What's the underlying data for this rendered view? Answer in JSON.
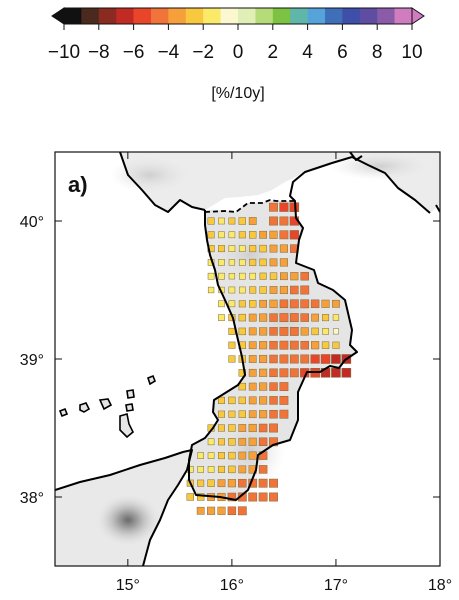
{
  "colorbar": {
    "colors": [
      "#111111",
      "#4a2a1e",
      "#8b2a20",
      "#c22a24",
      "#e8452a",
      "#f0733a",
      "#f6a03c",
      "#f8c93e",
      "#fbe96a",
      "#fbf7cf",
      "#e1efb6",
      "#b6dc7a",
      "#7dc242",
      "#5fb7a9",
      "#55a3d8",
      "#3f6fb9",
      "#3d4fa8",
      "#5d4ea2",
      "#8a5ba8",
      "#d07cc0"
    ],
    "tick_labels": [
      "−10",
      "−8",
      "−6",
      "−4",
      "−2",
      "0",
      "2",
      "4",
      "6",
      "8",
      "10"
    ],
    "unit_label": "[%/10y]"
  },
  "map": {
    "panel_label": "a)",
    "lon_range": [
      14.3,
      18.0
    ],
    "lat_range": [
      37.5,
      40.5
    ],
    "lon_ticks": [
      {
        "value": 15,
        "label": "15°"
      },
      {
        "value": 16,
        "label": "16°"
      },
      {
        "value": 17,
        "label": "17°"
      },
      {
        "value": 18,
        "label": "18°"
      }
    ],
    "lat_ticks": [
      {
        "value": 38,
        "label": "38°"
      },
      {
        "value": 39,
        "label": "39°"
      },
      {
        "value": 40,
        "label": "40°"
      }
    ],
    "trend_grid": {
      "spacing_deg": 0.1,
      "rows": [
        {
          "lat": 40.1,
          "lon_start": 16.4,
          "values": [
            -5,
            -5.5,
            -6
          ]
        },
        {
          "lat": 40.0,
          "lon_start": 15.8,
          "values": [
            -2.5,
            -2,
            -2.2,
            -3,
            -3.5
          ]
        },
        {
          "lat": 40.0,
          "lon_start": 16.4,
          "values": [
            -5,
            -5,
            -5.5
          ]
        },
        {
          "lat": 39.9,
          "lon_start": 15.8,
          "values": [
            -2.5,
            -2,
            -2,
            -2.5,
            -3,
            -3.5,
            -4,
            -5,
            -5.5
          ]
        },
        {
          "lat": 39.8,
          "lon_start": 15.8,
          "values": [
            -2.5,
            -2.4,
            -2,
            -2,
            -2.5,
            -3,
            -3.5,
            -4,
            -4.5
          ]
        },
        {
          "lat": 39.7,
          "lon_start": 15.8,
          "values": [
            -2,
            -2,
            -1.5,
            -2,
            -2.5,
            -3,
            -3.5,
            -4
          ]
        },
        {
          "lat": 39.6,
          "lon_start": 15.8,
          "values": [
            -2,
            -2,
            -1.5,
            -2,
            -2,
            -2.5,
            -3,
            -3.5,
            -4,
            -4.5
          ]
        },
        {
          "lat": 39.5,
          "lon_start": 15.8,
          "values": [
            -1.5,
            -1.5,
            -2,
            -2,
            -2.5,
            -3,
            -3.5,
            -4,
            -4.5,
            -5
          ]
        },
        {
          "lat": 39.4,
          "lon_start": 15.9,
          "values": [
            -2,
            -2,
            -2.5,
            -3,
            -3.5,
            -4,
            -4.5,
            -5,
            -5,
            -4.5,
            -4,
            -3.5
          ]
        },
        {
          "lat": 39.3,
          "lon_start": 15.9,
          "values": [
            -2,
            -2.5,
            -3,
            -3.5,
            -4,
            -4.5,
            -5,
            -5,
            -4.5,
            -3.5,
            -2.5,
            -1.5
          ]
        },
        {
          "lat": 39.2,
          "lon_start": 16.0,
          "values": [
            -2.5,
            -3,
            -3.5,
            -4,
            -4.5,
            -5,
            -5,
            -4,
            -3,
            -2,
            -1
          ]
        },
        {
          "lat": 39.1,
          "lon_start": 16.0,
          "values": [
            -2.5,
            -3,
            -3.5,
            -4,
            -4.5,
            -5,
            -5,
            -4.5,
            -4,
            -3,
            -2.5
          ]
        },
        {
          "lat": 39.0,
          "lon_start": 16.0,
          "values": [
            -2.5,
            -3,
            -3.5,
            -4,
            -4.5,
            -5,
            -5,
            -5,
            -5.5,
            -6,
            -6.5,
            -7
          ]
        },
        {
          "lat": 38.9,
          "lon_start": 16.1,
          "values": [
            -3,
            -3.5,
            -4,
            -4.5,
            -5,
            -5,
            -5.5,
            -6,
            -6.5,
            -6.5,
            -6.5
          ]
        },
        {
          "lat": 38.8,
          "lon_start": 16.1,
          "values": [
            -3,
            -3.5,
            -4,
            -4.5,
            -5
          ]
        },
        {
          "lat": 38.7,
          "lon_start": 15.9,
          "values": [
            -2.5,
            -3,
            -3,
            -3.5,
            -4,
            -4.5,
            -5
          ]
        },
        {
          "lat": 38.6,
          "lon_start": 15.9,
          "values": [
            -2.5,
            -2.5,
            -3,
            -3.5,
            -4,
            -4.5,
            -5
          ]
        },
        {
          "lat": 38.5,
          "lon_start": 15.8,
          "values": [
            -2.5,
            -2.5,
            -3,
            -3.5,
            -4,
            -4.5,
            -5
          ]
        },
        {
          "lat": 38.4,
          "lon_start": 15.8,
          "values": [
            -2,
            -2.5,
            -3,
            -3.5,
            -4,
            -4.5,
            -5
          ]
        },
        {
          "lat": 38.3,
          "lon_start": 15.7,
          "values": [
            -2,
            -2,
            -2.5,
            -3,
            -3.5,
            -4,
            -4.5
          ]
        },
        {
          "lat": 38.2,
          "lon_start": 15.6,
          "values": [
            -2,
            -2,
            -2,
            -2.5,
            -3,
            -3.5,
            -4,
            -4.5
          ]
        },
        {
          "lat": 38.1,
          "lon_start": 15.6,
          "values": [
            -2.5,
            -2.5,
            -3,
            -3.5,
            -4,
            -4.5,
            -5,
            -5,
            -5
          ]
        },
        {
          "lat": 38.0,
          "lon_start": 15.6,
          "values": [
            -3,
            -3,
            -3.5,
            -4,
            -4.5,
            -5,
            -5,
            -5,
            -5
          ]
        },
        {
          "lat": 37.9,
          "lon_start": 15.7,
          "values": [
            -3.5,
            -4,
            -4,
            -4.5,
            -5
          ]
        }
      ]
    }
  }
}
